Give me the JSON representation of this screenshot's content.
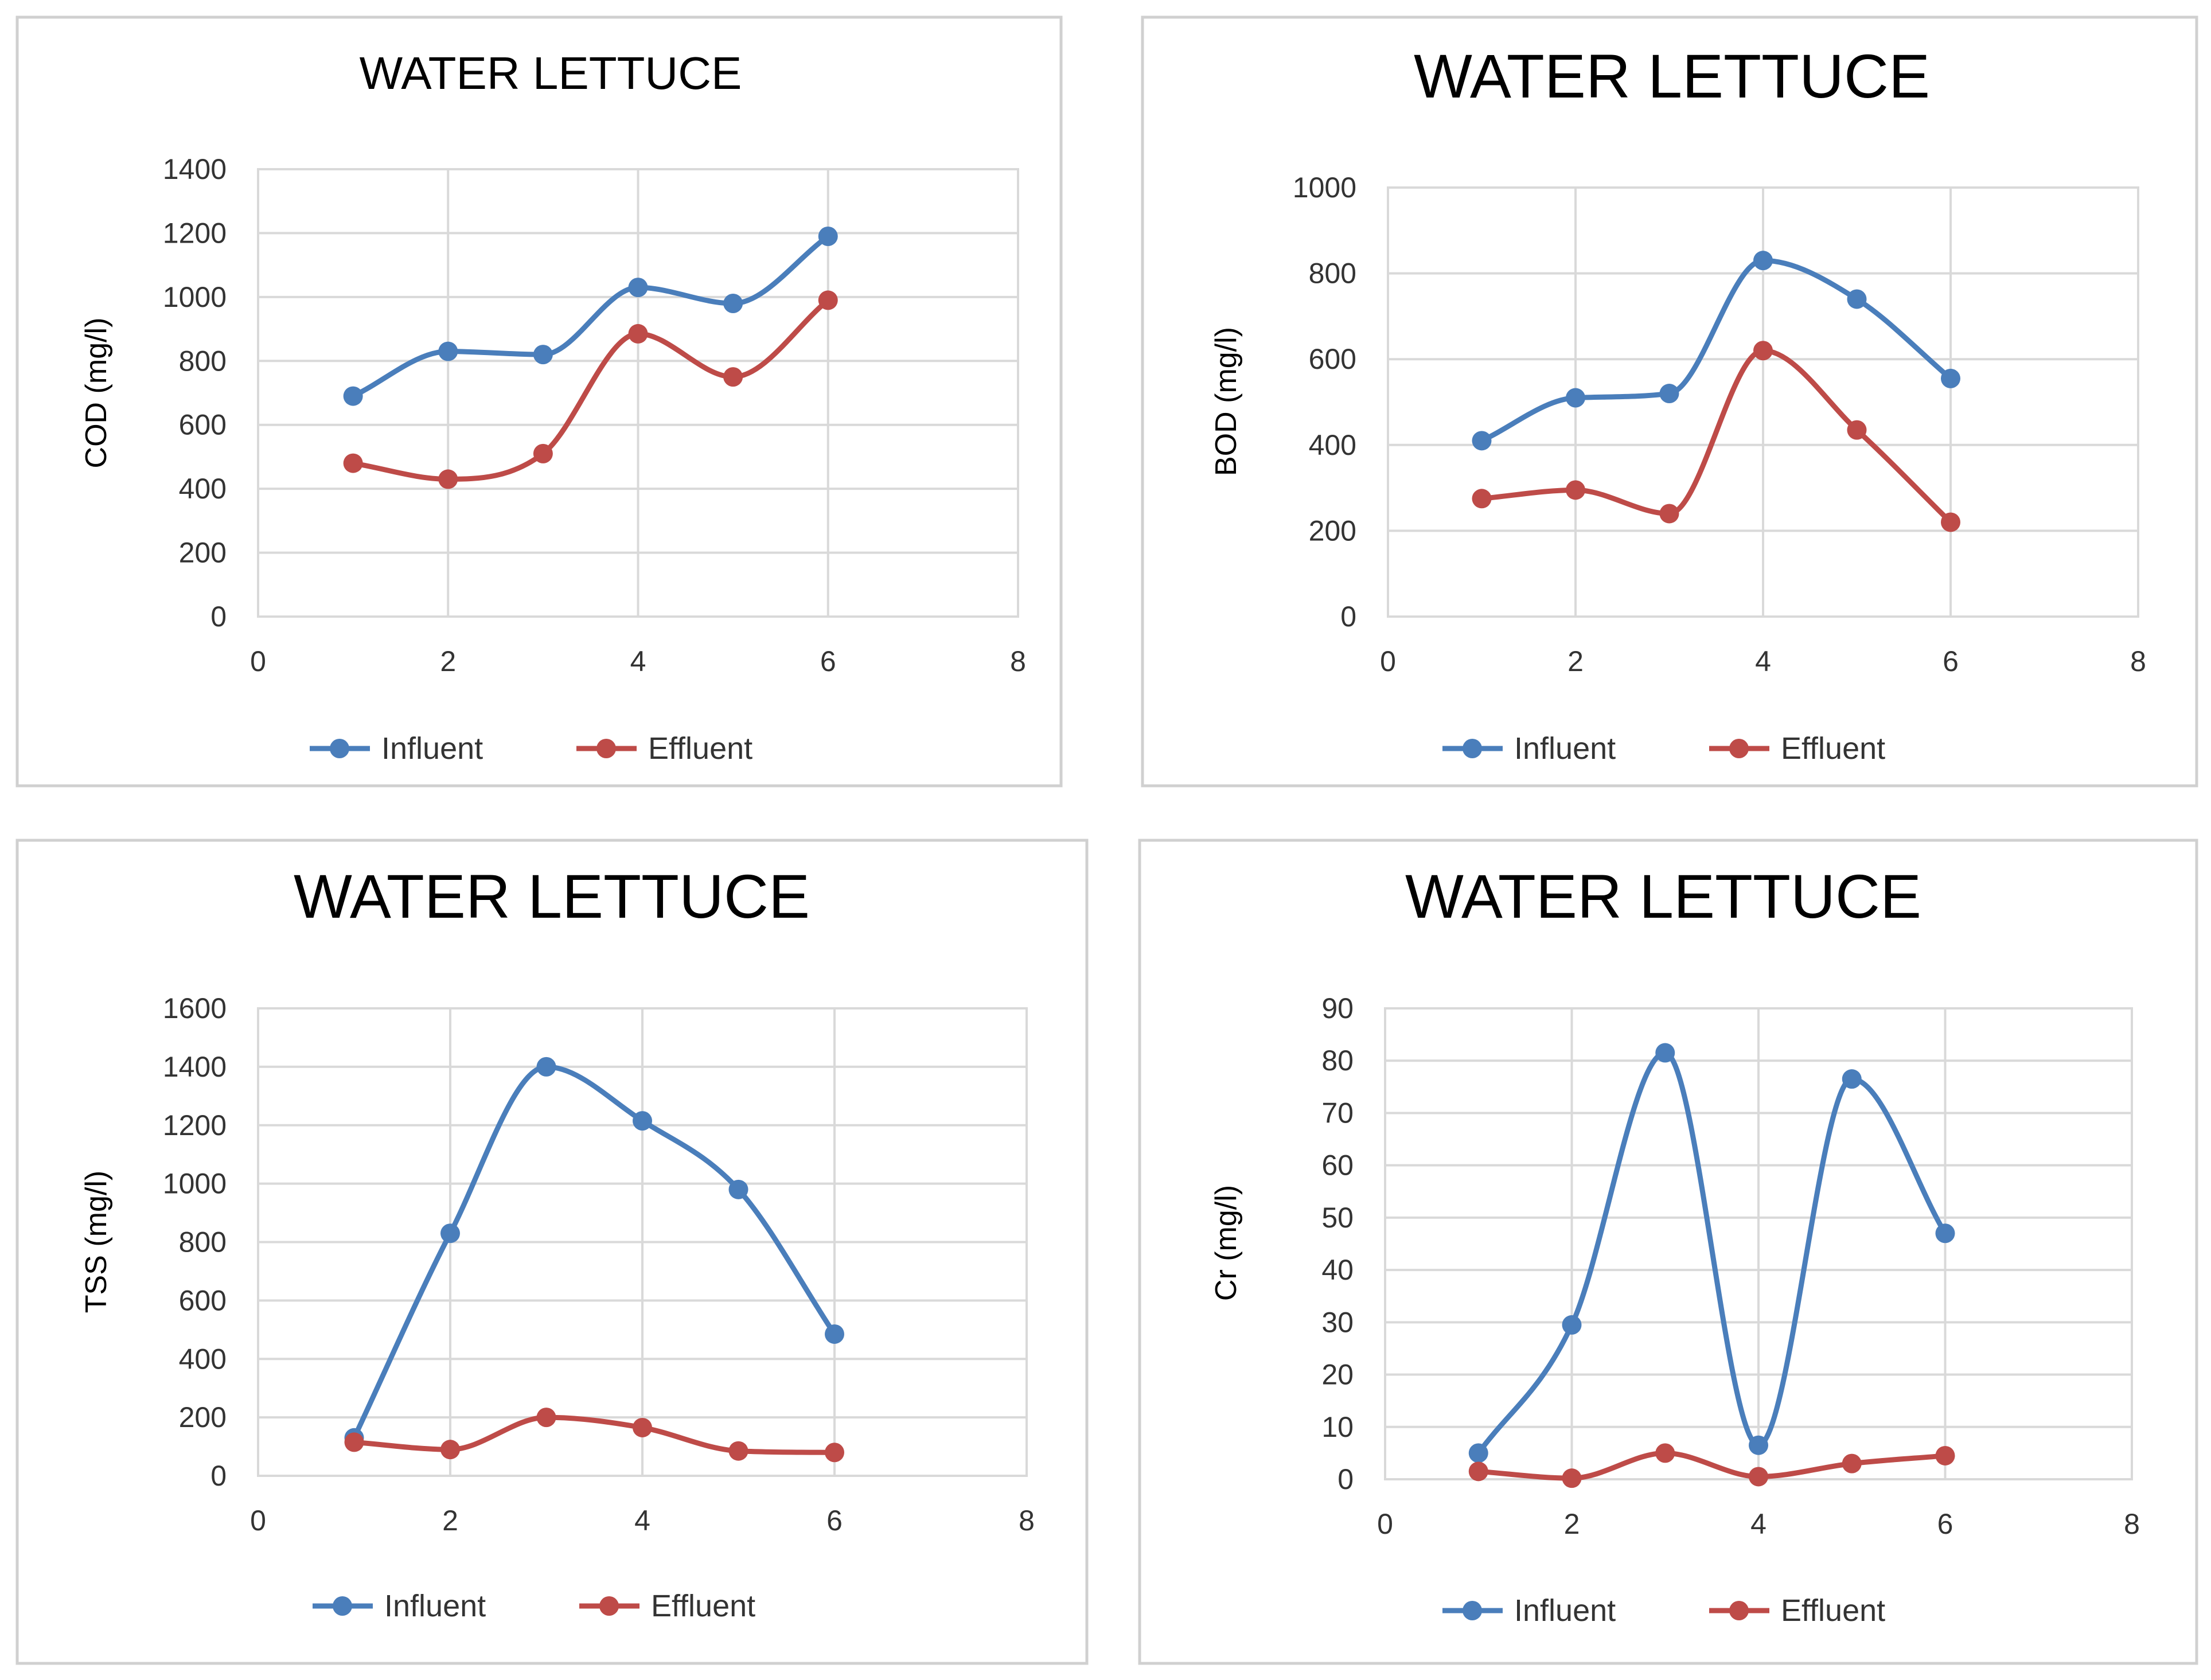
{
  "colors": {
    "influent": "#4a7ebb",
    "effluent": "#be4b48"
  },
  "chart_data": [
    {
      "type": "line",
      "title": "WATER LETTUCE",
      "xlabel": "",
      "ylabel": "COD (mg/l)",
      "xlim": [
        0,
        8
      ],
      "ylim": [
        0,
        1400
      ],
      "xticks": [
        "0",
        "2",
        "4",
        "6",
        "8"
      ],
      "yticks": [
        "0",
        "200",
        "400",
        "600",
        "800",
        "1000",
        "1200",
        "1400"
      ],
      "x": [
        1,
        2,
        3,
        4,
        5,
        6
      ],
      "series": [
        {
          "name": "Influent",
          "values": [
            690,
            830,
            820,
            1030,
            980,
            1190
          ]
        },
        {
          "name": "Effluent",
          "values": [
            480,
            430,
            510,
            885,
            750,
            990
          ]
        }
      ],
      "legend": "bottom",
      "grid": true
    },
    {
      "type": "line",
      "title": "WATER LETTUCE",
      "xlabel": "",
      "ylabel": "BOD (mg/l)",
      "xlim": [
        0,
        8
      ],
      "ylim": [
        0,
        1000
      ],
      "xticks": [
        "0",
        "2",
        "4",
        "6",
        "8"
      ],
      "yticks": [
        "0",
        "200",
        "400",
        "600",
        "800",
        "1000"
      ],
      "x": [
        1,
        2,
        3,
        4,
        5,
        6
      ],
      "series": [
        {
          "name": "Influent",
          "values": [
            410,
            510,
            520,
            830,
            740,
            555
          ]
        },
        {
          "name": "Effluent",
          "values": [
            275,
            295,
            240,
            620,
            435,
            220
          ]
        }
      ],
      "legend": "bottom",
      "grid": true
    },
    {
      "type": "line",
      "title": "WATER LETTUCE",
      "xlabel": "",
      "ylabel": "TSS (mg/l)",
      "xlim": [
        0,
        8
      ],
      "ylim": [
        0,
        1600
      ],
      "xticks": [
        "0",
        "2",
        "4",
        "6",
        "8"
      ],
      "yticks": [
        "0",
        "200",
        "400",
        "600",
        "800",
        "1000",
        "1200",
        "1400",
        "1600"
      ],
      "x": [
        1,
        2,
        3,
        4,
        5,
        6
      ],
      "series": [
        {
          "name": "Influent",
          "values": [
            130,
            830,
            1400,
            1215,
            980,
            485
          ]
        },
        {
          "name": "Effluent",
          "values": [
            115,
            90,
            200,
            165,
            85,
            80
          ]
        }
      ],
      "legend": "bottom",
      "grid": true
    },
    {
      "type": "line",
      "title": "WATER LETTUCE",
      "xlabel": "",
      "ylabel": "Cr (mg/l)",
      "xlim": [
        0,
        8
      ],
      "ylim": [
        0,
        90
      ],
      "xticks": [
        "0",
        "2",
        "4",
        "6",
        "8"
      ],
      "yticks": [
        "0",
        "10",
        "20",
        "30",
        "40",
        "50",
        "60",
        "70",
        "80",
        "90"
      ],
      "x": [
        1,
        2,
        3,
        4,
        5,
        6
      ],
      "series": [
        {
          "name": "Influent",
          "values": [
            5,
            29.5,
            81.5,
            6.5,
            76.5,
            47
          ]
        },
        {
          "name": "Effluent",
          "values": [
            1.5,
            0.2,
            5,
            0.5,
            3,
            4.5
          ]
        }
      ],
      "legend": "bottom",
      "grid": true
    }
  ]
}
